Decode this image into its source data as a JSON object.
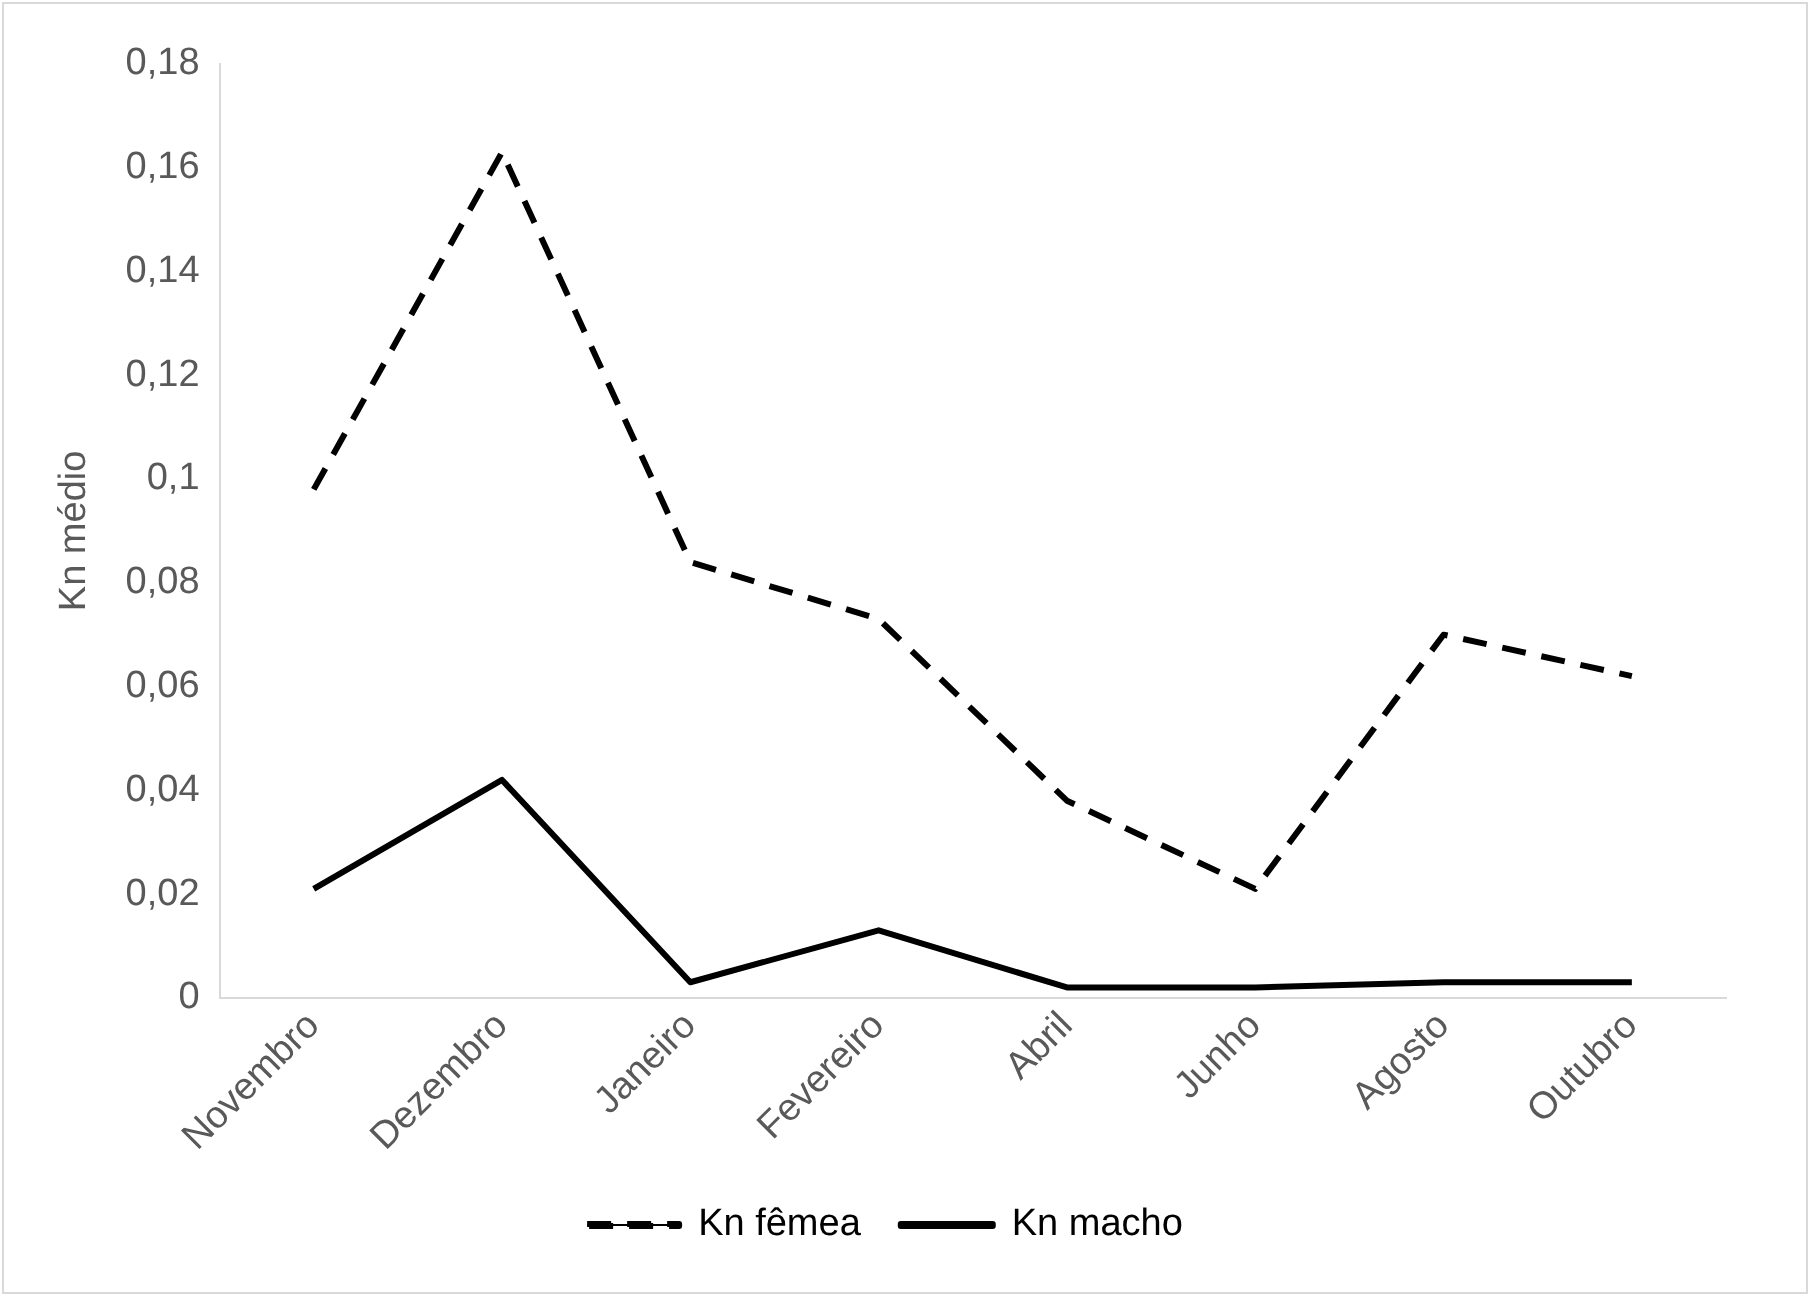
{
  "chart_data": {
    "type": "line",
    "ylabel": "Kn médio",
    "categories": [
      "Novembro",
      "Dezembro",
      "Janeiro",
      "Fevereiro",
      "Abril",
      "Junho",
      "Agosto",
      "Outubro"
    ],
    "series": [
      {
        "name": "Kn fêmea",
        "color": "#000000",
        "line_style": "dashed",
        "values": [
          0.098,
          0.163,
          0.084,
          0.073,
          0.038,
          0.021,
          0.07,
          0.062
        ]
      },
      {
        "name": "Kn macho",
        "color": "#000000",
        "line_style": "solid",
        "values": [
          0.021,
          0.042,
          0.003,
          0.013,
          0.002,
          0.002,
          0.003,
          0.003
        ]
      }
    ],
    "ylim": [
      0,
      0.18
    ],
    "yticks": [
      0,
      {
        "value": 0.02,
        "label": "0,02"
      },
      {
        "value": 0.04,
        "label": "0,04"
      },
      {
        "value": 0.06,
        "label": "0,06"
      },
      {
        "value": 0.08,
        "label": "0,08"
      },
      {
        "value": 0.1,
        "label": "0,1"
      },
      {
        "value": 0.12,
        "label": "0,12"
      },
      {
        "value": 0.14,
        "label": "0,14"
      },
      {
        "value": 0.16,
        "label": "0,16"
      },
      {
        "value": 0.18,
        "label": "0,18"
      }
    ],
    "grid": false,
    "legend": "bottom",
    "marker": "none"
  }
}
